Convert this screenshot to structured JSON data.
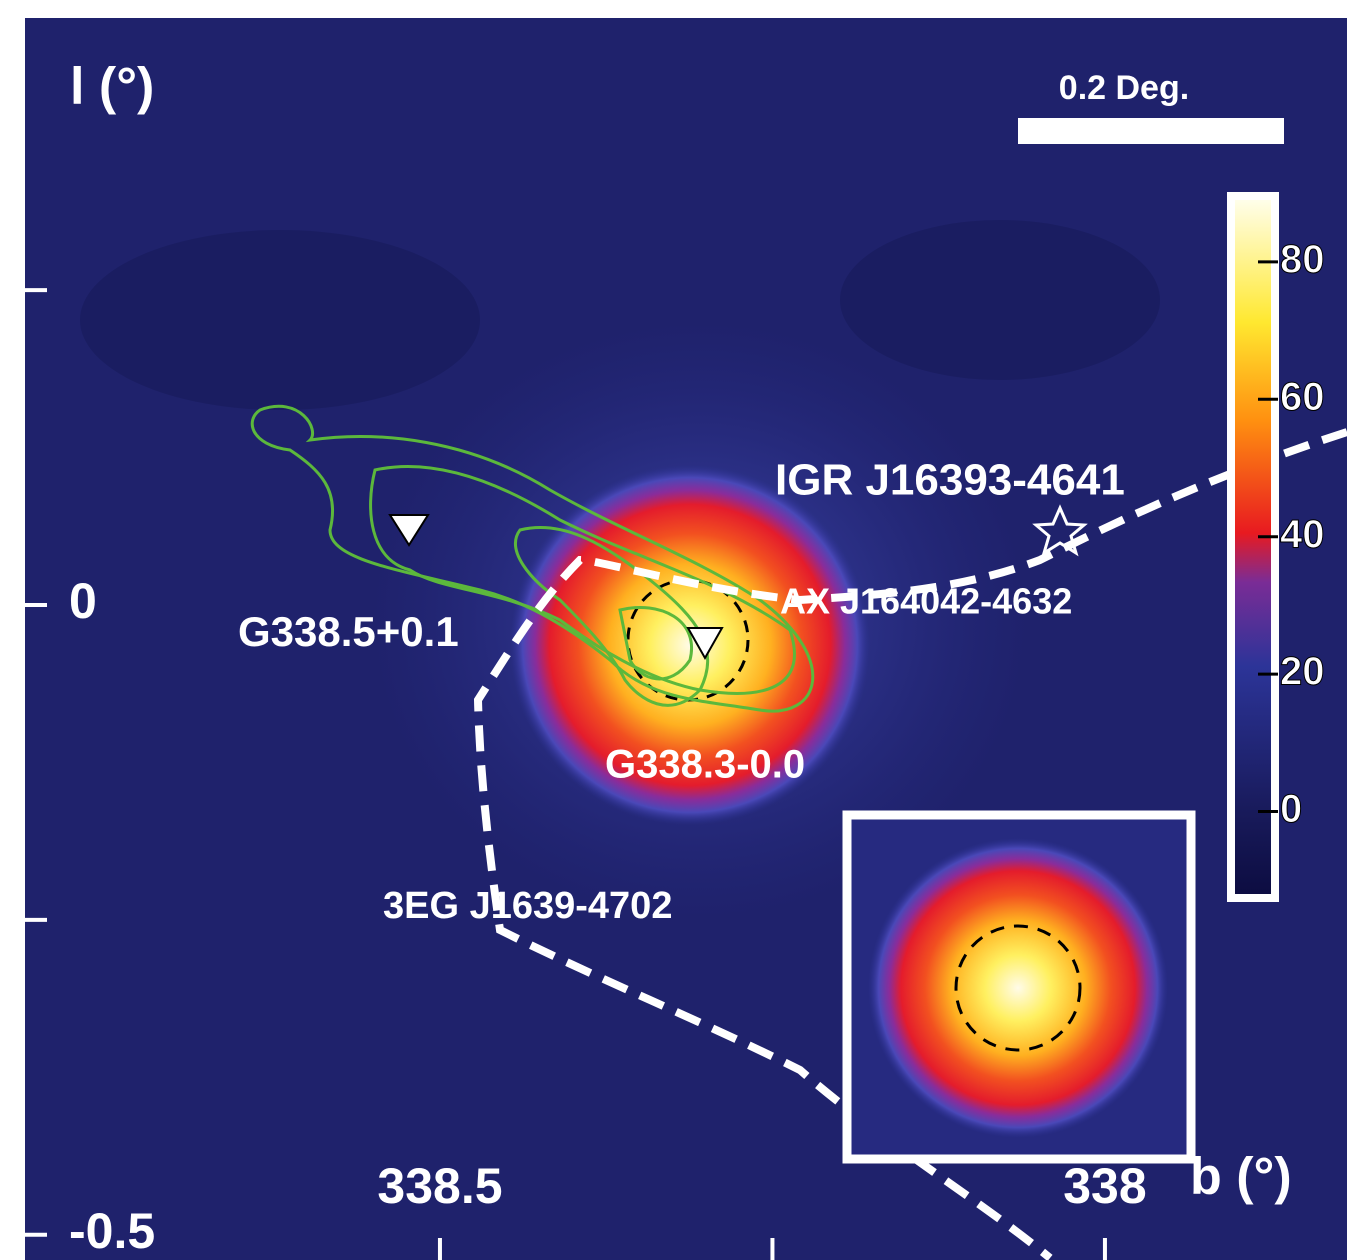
{
  "chart_data": {
    "type": "skymap",
    "x_label": "b (°)",
    "y_label": "l (°)",
    "xlim": [
      338.812,
      337.818
    ],
    "xticks": [
      338.5,
      338
    ],
    "xminor": [
      338.25
    ],
    "ylim": [
      -0.52,
      0.466
    ],
    "yticks": [
      0,
      -0.5
    ],
    "yminor": [
      0.25,
      -0.25
    ],
    "scale_bar": "0.2 Deg.",
    "colorbar": {
      "clim": [
        -12,
        89
      ],
      "ticks": [
        0,
        20,
        40,
        60,
        80
      ]
    },
    "annotations": [
      "IGR J16393-4641",
      "AX J164042-4632",
      "G338.5+0.1",
      "G338.3-0.0",
      "3EG J1639-4702"
    ]
  }
}
